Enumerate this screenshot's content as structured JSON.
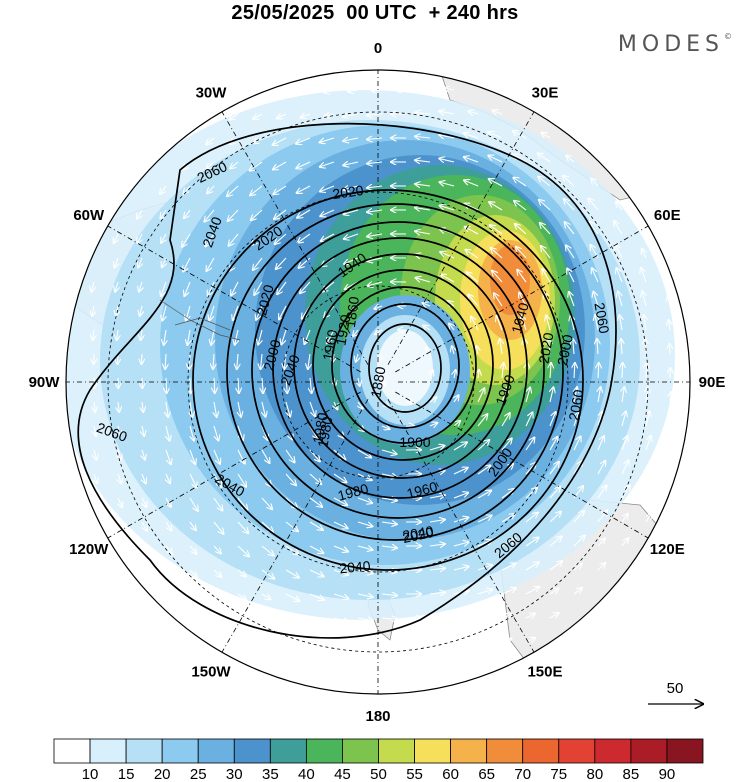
{
  "title": "25/05/2025  00 UTC  + 240 hrs",
  "brand": "MODES",
  "brand_mark": "©",
  "map": {
    "projection": "polar-stereographic-south",
    "meridian_labels": [
      {
        "name": "label-0",
        "text": "0",
        "lon": 0
      },
      {
        "name": "label-30e",
        "text": "30E",
        "lon": 30
      },
      {
        "name": "label-60e",
        "text": "60E",
        "lon": 60
      },
      {
        "name": "label-90e",
        "text": "90E",
        "lon": 90
      },
      {
        "name": "label-120e",
        "text": "120E",
        "lon": 120
      },
      {
        "name": "label-150e",
        "text": "150E",
        "lon": 150
      },
      {
        "name": "label-180",
        "text": "180",
        "lon": 180
      },
      {
        "name": "label-150w",
        "text": "150W",
        "lon": -150
      },
      {
        "name": "label-120w",
        "text": "120W",
        "lon": -120
      },
      {
        "name": "label-90w",
        "text": "90W",
        "lon": -90
      },
      {
        "name": "label-60w",
        "text": "60W",
        "lon": -60
      },
      {
        "name": "label-30w",
        "text": "30W",
        "lon": -30
      }
    ],
    "contour_labels": [
      "2060",
      "2020",
      "2040",
      "2060",
      "2020",
      "2040",
      "2060",
      "2020",
      "2000",
      "1980",
      "1960",
      "1940",
      "1920",
      "1900",
      "1880",
      "1860",
      "1900",
      "1940",
      "1960",
      "1980",
      "2000",
      "2020",
      "2040",
      "2060",
      "2040",
      "2060",
      "1980",
      "2000",
      "2020",
      "2040"
    ],
    "wind_reference": {
      "label": "50"
    }
  },
  "colorbar": {
    "labels": [
      "10",
      "15",
      "20",
      "25",
      "30",
      "35",
      "40",
      "45",
      "50",
      "55",
      "60",
      "65",
      "70",
      "75",
      "80",
      "85",
      "90"
    ],
    "colors": [
      "#ffffff",
      "#d8f0fb",
      "#b5e0f6",
      "#8ccaef",
      "#6ab1e2",
      "#4c93cd",
      "#3e9e9a",
      "#4bb55b",
      "#7cc44e",
      "#c3db4c",
      "#f5df5b",
      "#f6b24a",
      "#f18d3a",
      "#ec6630",
      "#e24134",
      "#cc2a2f",
      "#aa1c26",
      "#881520"
    ]
  }
}
